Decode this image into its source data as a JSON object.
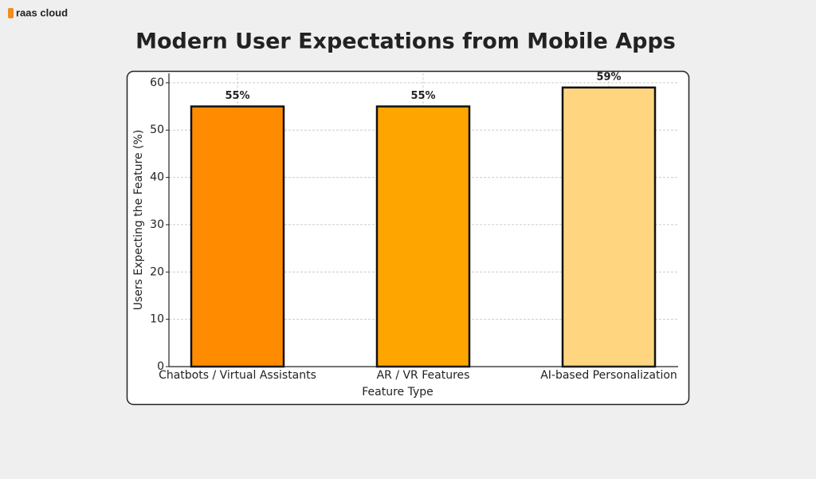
{
  "brand": "raas cloud",
  "chart_data": {
    "type": "bar",
    "title": "Modern User Expectations from Mobile Apps",
    "x_label": "Feature Type",
    "y_label": "Users Expecting the Feature (%)",
    "categories": [
      "Chatbots / Virtual Assistants",
      "AR / VR Features",
      "AI-based Personalization"
    ],
    "values": [
      55,
      55,
      59
    ],
    "value_labels": [
      "55%",
      "55%",
      "59%"
    ],
    "colors": [
      "#ff8c00",
      "#ffa500",
      "#ffd580"
    ],
    "ylim": [
      0,
      62
    ],
    "yticks": [
      0,
      10,
      20,
      30,
      40,
      50,
      60
    ],
    "grid": true
  }
}
